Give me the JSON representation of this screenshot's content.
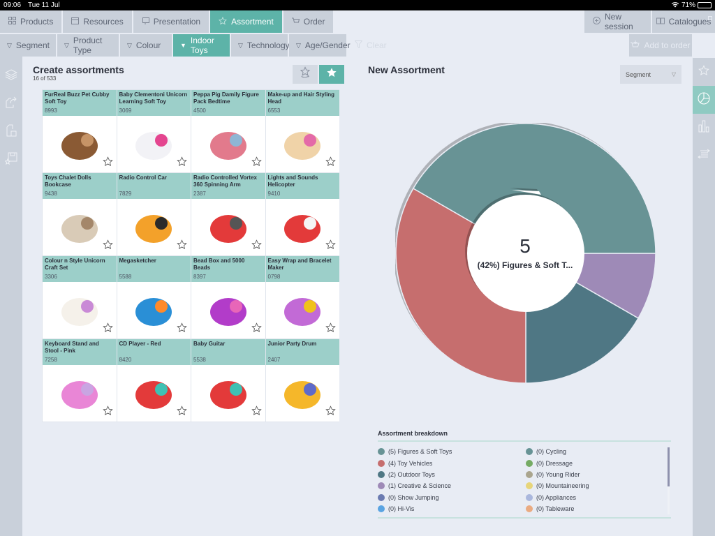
{
  "status_bar": {
    "time": "09:06",
    "date": "Tue 11 Jul",
    "battery": "71%"
  },
  "top_tabs": [
    {
      "label": "Products",
      "icon": "grid-icon",
      "active": false
    },
    {
      "label": "Resources",
      "icon": "resources-icon",
      "active": false
    },
    {
      "label": "Presentation",
      "icon": "presentation-icon",
      "active": false
    },
    {
      "label": "Assortment",
      "icon": "star-icon",
      "active": true
    },
    {
      "label": "Order",
      "icon": "cart-icon",
      "active": false
    }
  ],
  "top_right": {
    "new_session": "New session",
    "catalogues": "Catalogues"
  },
  "filters": [
    {
      "label": "Segment",
      "active": false
    },
    {
      "label": "Product Type",
      "active": false
    },
    {
      "label": "Colour",
      "active": false
    },
    {
      "label": "Indoor Toys",
      "active": true
    },
    {
      "label": "Technology",
      "active": false
    },
    {
      "label": "Age/Gender",
      "active": false
    }
  ],
  "clear_label": "Clear",
  "add_to_order": "Add to order",
  "left_panel": {
    "title": "Create assortments",
    "count": "16 of 533"
  },
  "products": [
    {
      "name": "FurReal Buzz Pet Cubby Soft Toy",
      "sku": "8993"
    },
    {
      "name": "Baby Clementoni Unicorn Learning Soft Toy",
      "sku": "3069"
    },
    {
      "name": "Peppa Pig Damily Figure Pack Bedtime",
      "sku": "4500"
    },
    {
      "name": "Make-up and Hair Styling Head",
      "sku": "6553"
    },
    {
      "name": "Toys Chalet Dolls Bookcase",
      "sku": "9438"
    },
    {
      "name": "Radio Control Car",
      "sku": "7829"
    },
    {
      "name": "Radio Controlled Vortex 360 Spinning Arm",
      "sku": "2387"
    },
    {
      "name": "Lights and Sounds Helicopter",
      "sku": "9410"
    },
    {
      "name": "Colour n Style Unicorn Craft Set",
      "sku": "3306"
    },
    {
      "name": "Megasketcher",
      "sku": "5588"
    },
    {
      "name": "Bead Box and 5000 Beads",
      "sku": "8397"
    },
    {
      "name": "Easy Wrap and Bracelet Maker",
      "sku": "0798"
    },
    {
      "name": "Keyboard Stand and Stool - Pink",
      "sku": "7258"
    },
    {
      "name": "CD Player - Red",
      "sku": "8420"
    },
    {
      "name": "Baby Guitar",
      "sku": "5538"
    },
    {
      "name": "Junior Party Drum",
      "sku": "2407"
    }
  ],
  "right_panel": {
    "title": "New Assortment",
    "group_by": "Segment"
  },
  "pie_center": {
    "value": "5",
    "label": "(42%) Figures & Soft T..."
  },
  "breakdown": {
    "title": "Assortment breakdown",
    "left": [
      {
        "label": "(5) Figures & Soft Toys",
        "color": "#679395"
      },
      {
        "label": "(4) Toy Vehicles",
        "color": "#c66e6e"
      },
      {
        "label": "(2) Outdoor Toys",
        "color": "#4f7784"
      },
      {
        "label": "(1) Creative & Science",
        "color": "#9e8ab7"
      },
      {
        "label": "(0) Show Jumping",
        "color": "#6b7bb1"
      },
      {
        "label": "(0) Hi-Vis",
        "color": "#5aa4e2"
      }
    ],
    "right": [
      {
        "label": "(0) Cycling",
        "color": "#679395"
      },
      {
        "label": "(0) Dressage",
        "color": "#75ab64"
      },
      {
        "label": "(0) Young Rider",
        "color": "#aaa58e"
      },
      {
        "label": "(0) Mountaineering",
        "color": "#e7d57a"
      },
      {
        "label": "(0) Appliances",
        "color": "#aab7dd"
      },
      {
        "label": "(0) Tableware",
        "color": "#eaab82"
      }
    ]
  },
  "chart_data": {
    "type": "pie",
    "title": "New Assortment",
    "categories": [
      "Figures & Soft Toys",
      "Toy Vehicles",
      "Outdoor Toys",
      "Creative & Science"
    ],
    "values": [
      5,
      4,
      2,
      1
    ],
    "colors": [
      "#679395",
      "#c66e6e",
      "#4f7784",
      "#9e8ab7"
    ],
    "donut": true,
    "center_value": 5,
    "center_label": "(42%) Figures & Soft T...",
    "legend_position": "bottom"
  },
  "colors": {
    "accent": "#5db3a8",
    "accent_light": "#9ccfc9",
    "rail": "#c9d0da",
    "background": "#e8ecf4"
  }
}
